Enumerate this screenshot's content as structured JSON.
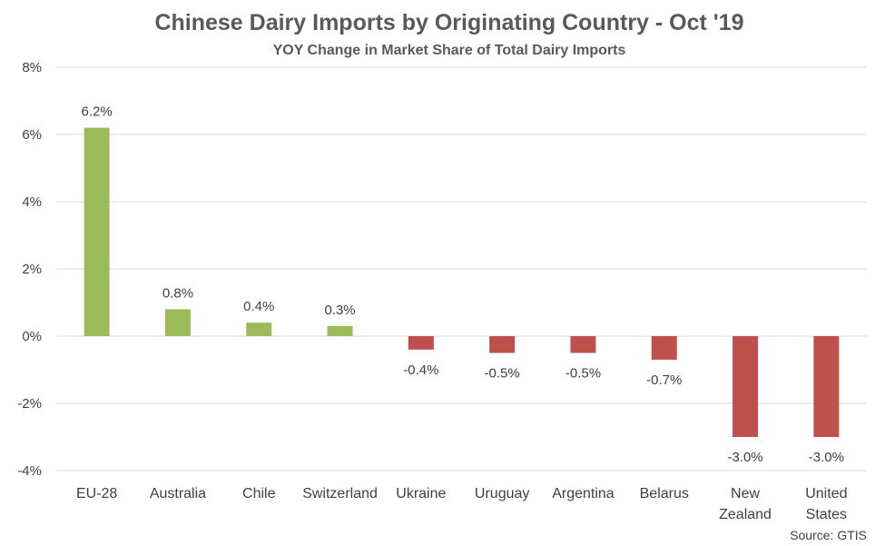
{
  "chart_data": {
    "type": "bar",
    "title": "Chinese Dairy Imports by Originating Country - Oct '19",
    "subtitle": "YOY Change in Market Share of Total Dairy Imports",
    "categories": [
      [
        "EU-28"
      ],
      [
        "Australia"
      ],
      [
        "Chile"
      ],
      [
        "Switzerland"
      ],
      [
        "Ukraine"
      ],
      [
        "Uruguay"
      ],
      [
        "Argentina"
      ],
      [
        "Belarus"
      ],
      [
        "New",
        "Zealand"
      ],
      [
        "United",
        "States"
      ]
    ],
    "values": [
      6.2,
      0.8,
      0.4,
      0.3,
      -0.4,
      -0.5,
      -0.5,
      -0.7,
      -3.0,
      -3.0
    ],
    "data_labels": [
      "6.2%",
      "0.8%",
      "0.4%",
      "0.3%",
      "-0.4%",
      "-0.5%",
      "-0.5%",
      "-0.7%",
      "-3.0%",
      "-3.0%"
    ],
    "ylim": [
      -4,
      8
    ],
    "yticks": [
      8,
      6,
      4,
      2,
      0,
      -2,
      -4
    ],
    "ytick_labels": [
      "8%",
      "6%",
      "4%",
      "2%",
      "0%",
      "-2%",
      "-4%"
    ],
    "grid": true,
    "colors": {
      "positive": "#9BBB59",
      "negative": "#C0504D",
      "grid": "#D9D9D9"
    },
    "source": "Source: GTIS"
  }
}
